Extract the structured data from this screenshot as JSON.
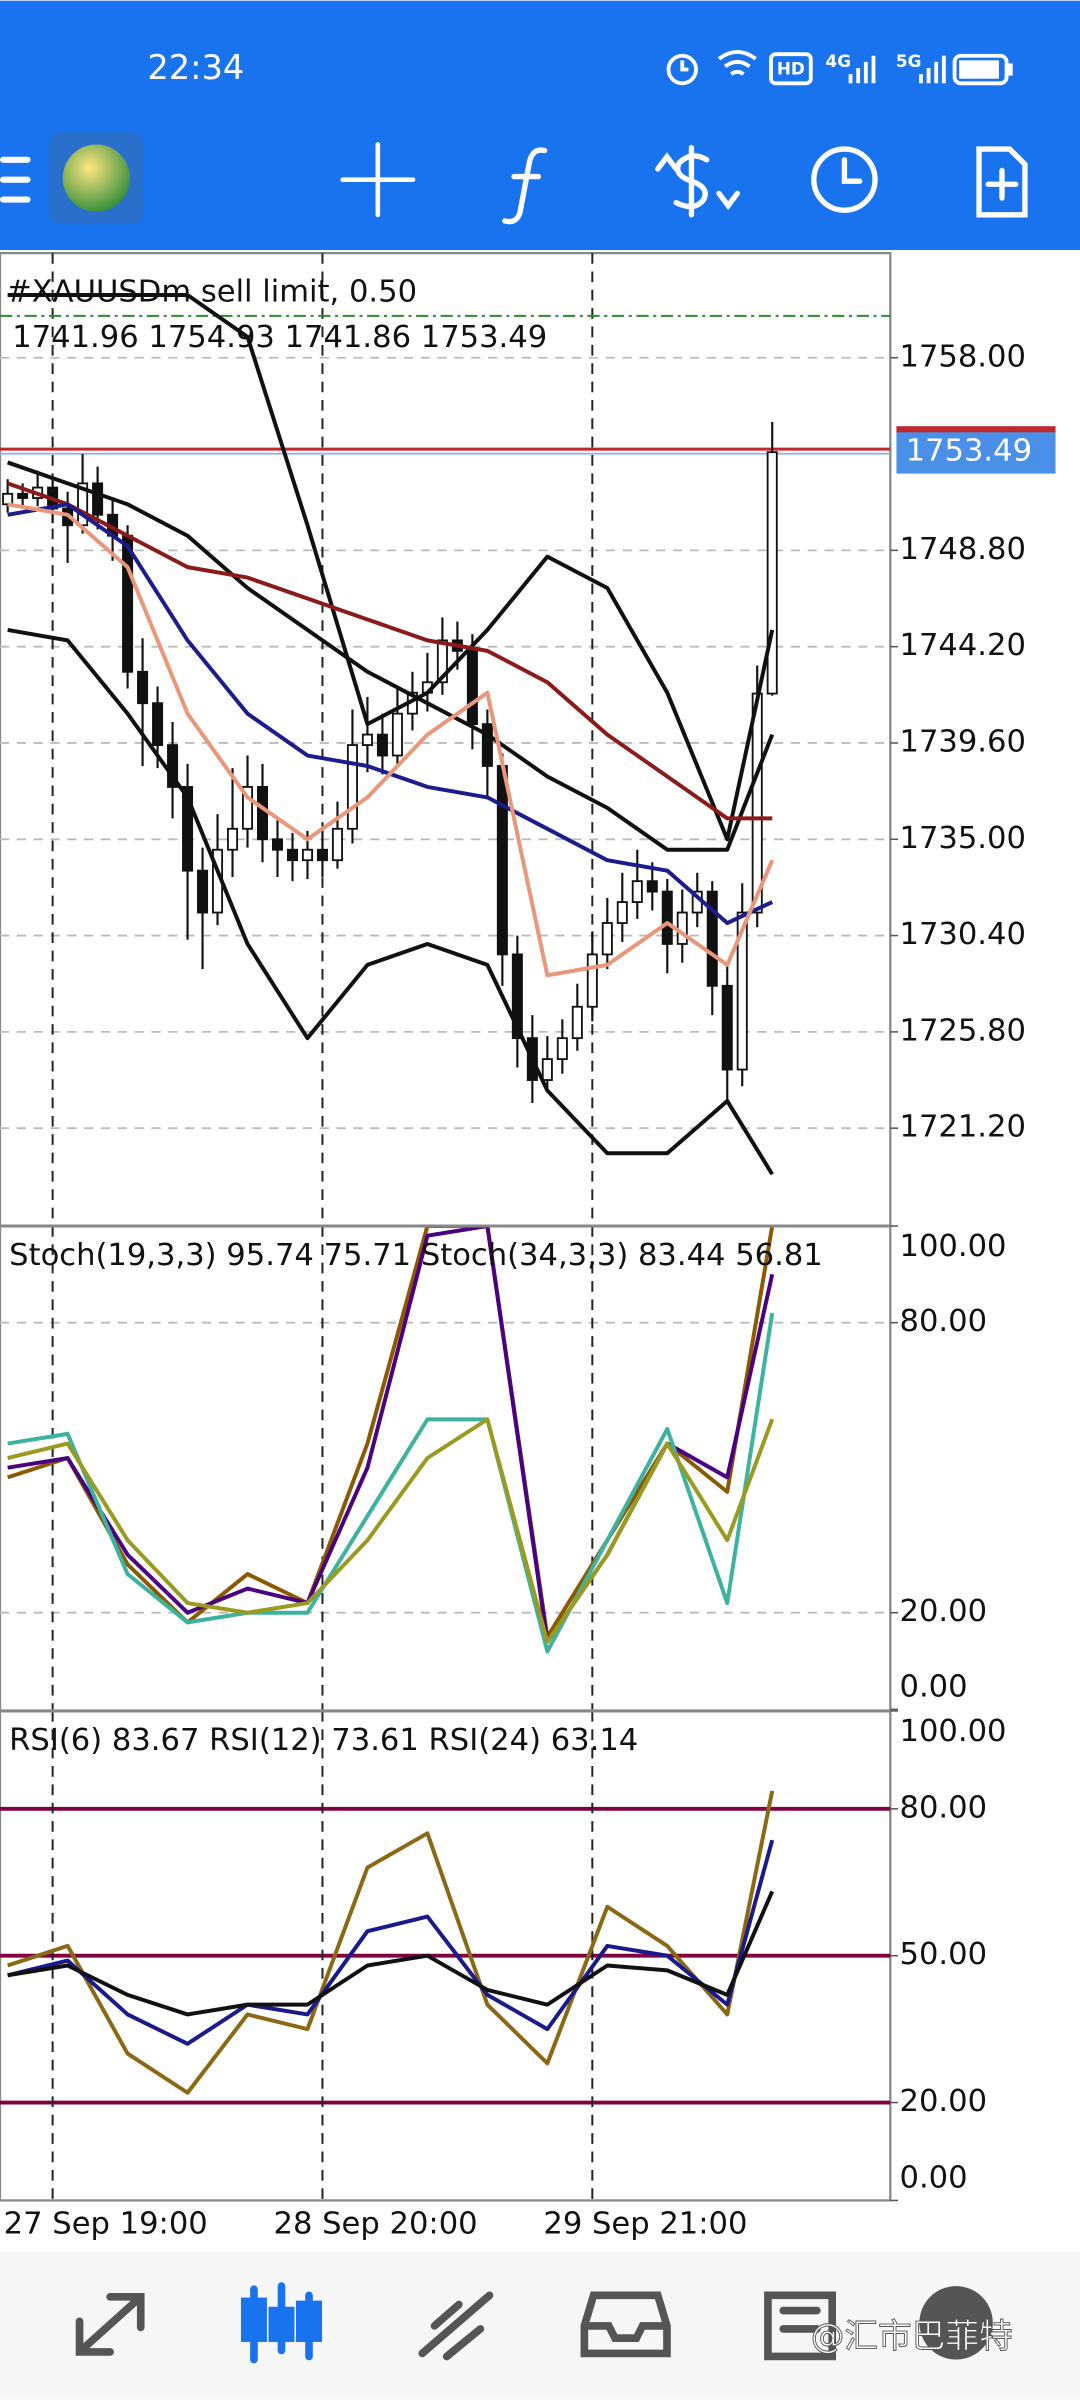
{
  "status_bar": {
    "time": "22:34",
    "icons": [
      "HD",
      "4G",
      "5G"
    ]
  },
  "main_chart": {
    "type": "candlestick",
    "title": "#XAUUSDm sell limit, 0.50",
    "ohlc_text": "1741.96 1754.93 1741.86 1753.49",
    "candles": [
      [
        1751.0,
        1752.2,
        1750.6,
        1751.5
      ],
      [
        1751.5,
        1752.0,
        1750.8,
        1751.3
      ],
      [
        1751.3,
        1752.6,
        1750.9,
        1751.8
      ],
      [
        1751.8,
        1752.3,
        1750.1,
        1750.8
      ],
      [
        1750.8,
        1751.6,
        1748.2,
        1750.0
      ],
      [
        1750.0,
        1753.4,
        1749.6,
        1752.0
      ],
      [
        1752.0,
        1752.8,
        1749.8,
        1750.5
      ],
      [
        1750.5,
        1751.2,
        1748.3,
        1749.5
      ],
      [
        1749.5,
        1750.0,
        1742.2,
        1743.0
      ],
      [
        1743.0,
        1744.6,
        1738.5,
        1741.5
      ],
      [
        1741.5,
        1742.3,
        1738.4,
        1739.5
      ],
      [
        1739.5,
        1740.6,
        1736.0,
        1737.5
      ],
      [
        1737.5,
        1738.6,
        1730.2,
        1733.5
      ],
      [
        1733.5,
        1734.6,
        1728.8,
        1731.5
      ],
      [
        1731.5,
        1736.2,
        1730.9,
        1734.5
      ],
      [
        1734.5,
        1738.4,
        1733.2,
        1735.5
      ],
      [
        1735.5,
        1739.0,
        1734.6,
        1737.5
      ],
      [
        1737.5,
        1738.6,
        1733.9,
        1735.0
      ],
      [
        1735.0,
        1736.0,
        1733.2,
        1734.5
      ],
      [
        1734.5,
        1735.3,
        1733.0,
        1734.0
      ],
      [
        1734.0,
        1735.4,
        1733.1,
        1734.5
      ],
      [
        1734.5,
        1735.6,
        1733.2,
        1734.0
      ],
      [
        1734.0,
        1736.8,
        1733.6,
        1735.5
      ],
      [
        1735.5,
        1741.2,
        1734.8,
        1739.5
      ],
      [
        1739.5,
        1741.8,
        1738.2,
        1740.0
      ],
      [
        1740.0,
        1741.0,
        1738.1,
        1739.0
      ],
      [
        1739.0,
        1742.3,
        1738.5,
        1741.0
      ],
      [
        1741.0,
        1743.0,
        1740.2,
        1742.0
      ],
      [
        1742.0,
        1743.9,
        1741.1,
        1742.5
      ],
      [
        1742.5,
        1745.6,
        1741.9,
        1744.5
      ],
      [
        1744.5,
        1745.4,
        1743.1,
        1744.0
      ],
      [
        1744.0,
        1744.8,
        1739.3,
        1740.5
      ],
      [
        1740.5,
        1741.2,
        1737.0,
        1738.5
      ],
      [
        1738.5,
        1739.1,
        1728.0,
        1729.5
      ],
      [
        1729.5,
        1730.4,
        1724.1,
        1725.5
      ],
      [
        1725.5,
        1726.6,
        1722.4,
        1723.5
      ],
      [
        1723.5,
        1725.6,
        1722.9,
        1724.5
      ],
      [
        1724.5,
        1726.4,
        1723.8,
        1725.5
      ],
      [
        1725.5,
        1728.1,
        1724.9,
        1727.0
      ],
      [
        1727.0,
        1730.6,
        1726.3,
        1729.5
      ],
      [
        1729.5,
        1732.2,
        1728.8,
        1731.0
      ],
      [
        1731.0,
        1733.4,
        1730.1,
        1732.0
      ],
      [
        1732.0,
        1734.5,
        1731.2,
        1733.0
      ],
      [
        1733.0,
        1733.9,
        1731.6,
        1732.5
      ],
      [
        1732.5,
        1733.1,
        1728.6,
        1730.0
      ],
      [
        1730.0,
        1732.6,
        1729.1,
        1731.5
      ],
      [
        1731.5,
        1733.4,
        1730.8,
        1732.5
      ],
      [
        1732.5,
        1733.0,
        1726.6,
        1728.0
      ],
      [
        1728.0,
        1729.1,
        1722.5,
        1724.0
      ],
      [
        1724.0,
        1732.9,
        1723.2,
        1731.5
      ],
      [
        1731.5,
        1743.3,
        1730.8,
        1741.96
      ],
      [
        1741.96,
        1754.93,
        1741.86,
        1753.49
      ]
    ],
    "ylim": [
      1716.6,
      1763.0
    ],
    "yticks": [
      {
        "value": 1758,
        "label": "1758.00"
      },
      {
        "value": 1748.8,
        "label": "1748.80"
      },
      {
        "value": 1744.2,
        "label": "1744.20"
      },
      {
        "value": 1739.6,
        "label": "1739.60"
      },
      {
        "value": 1735,
        "label": "1735.00"
      },
      {
        "value": 1730.4,
        "label": "1730.40"
      },
      {
        "value": 1725.8,
        "label": "1725.80"
      },
      {
        "value": 1721.2,
        "label": "1721.20"
      }
    ],
    "current_price": 1753.49,
    "order_line": 1760.0,
    "grid": "dashed",
    "x": [
      0,
      4,
      8,
      12,
      16,
      20,
      24,
      28,
      32,
      36,
      40,
      44,
      48,
      51
    ],
    "series": [
      {
        "color": "#111111",
        "values": [
          1761,
          1761,
          1761,
          1761,
          1759,
          1750,
          1740.5,
          1742,
          1745,
          1748.5,
          1747,
          1742,
          1735,
          1745
        ]
      },
      {
        "color": "#111111",
        "values": [
          1745,
          1744.5,
          1741,
          1737,
          1730,
          1725.5,
          1729,
          1730,
          1729,
          1723,
          1720,
          1720,
          1722.5,
          1719
        ]
      },
      {
        "color": "#111111",
        "values": [
          1753,
          1752,
          1751,
          1749.5,
          1747,
          1745,
          1743,
          1741.5,
          1740,
          1738,
          1736.5,
          1734.5,
          1734.5,
          1740
        ]
      },
      {
        "color": "#8b1a1a",
        "values": [
          1752,
          1751,
          1749.5,
          1748,
          1747.5,
          1746.5,
          1745.5,
          1744.5,
          1744,
          1742.5,
          1740,
          1738,
          1736,
          1736
        ]
      },
      {
        "color": "#1c1c8c",
        "values": [
          1750.5,
          1751,
          1749,
          1744.5,
          1741,
          1739,
          1738.5,
          1737.5,
          1737,
          1735.5,
          1734,
          1733.5,
          1731,
          1732
        ]
      },
      {
        "color": "#e9967a",
        "values": [
          1751,
          1750.5,
          1748,
          1741,
          1737,
          1735,
          1737,
          1740,
          1742,
          1728.5,
          1729,
          1731,
          1729,
          1734
        ]
      }
    ],
    "time_marks": [
      {
        "index": 3,
        "label": "27 Sep 19:00"
      },
      {
        "index": 21,
        "label": "28 Sep 20:00"
      },
      {
        "index": 39,
        "label": "29 Sep 21:00"
      }
    ]
  },
  "stoch_chart": {
    "type": "line",
    "title": "Stoch(19,3,3) 95.74 75.71 Stoch(34,3,3) 83.44 56.81",
    "ylim": [
      0,
      100
    ],
    "yticks": [
      {
        "value": 100,
        "label": "100.00"
      },
      {
        "value": 80,
        "label": "80.00"
      },
      {
        "value": 20,
        "label": "20.00"
      },
      {
        "value": 0,
        "label": "0.00"
      }
    ],
    "grid": "dashed",
    "x": [
      0,
      4,
      8,
      12,
      16,
      20,
      24,
      28,
      32,
      36,
      40,
      44,
      48,
      51
    ],
    "series": [
      {
        "color": "#8b5a00",
        "values": [
          48,
          52,
          30,
          18,
          28,
          22,
          55,
          100,
          100,
          15,
          35,
          55,
          45,
          100
        ]
      },
      {
        "color": "#4b0082",
        "values": [
          50,
          52,
          32,
          20,
          25,
          22,
          50,
          98,
          100,
          14,
          32,
          55,
          48,
          90
        ]
      },
      {
        "color": "#3cb3a0",
        "values": [
          55,
          57,
          28,
          18,
          20,
          20,
          40,
          60,
          60,
          12,
          35,
          58,
          22,
          82
        ]
      },
      {
        "color": "#9a9a20",
        "values": [
          52,
          55,
          35,
          22,
          20,
          22,
          35,
          52,
          60,
          14,
          32,
          55,
          35,
          60
        ]
      }
    ]
  },
  "rsi_chart": {
    "type": "line",
    "title": "RSI(6) 83.67 RSI(12) 73.61 RSI(24) 63.14",
    "ylim": [
      0,
      100
    ],
    "yticks": [
      {
        "value": 100,
        "label": "100.00"
      },
      {
        "value": 80,
        "label": "80.00"
      },
      {
        "value": 50,
        "label": "50.00"
      },
      {
        "value": 20,
        "label": "20.00"
      },
      {
        "value": 0,
        "label": "0.00"
      }
    ],
    "grid": "solid",
    "x": [
      0,
      4,
      8,
      12,
      16,
      20,
      24,
      28,
      32,
      36,
      40,
      44,
      48,
      51
    ],
    "series": [
      {
        "color": "#8b6914",
        "values": [
          48,
          52,
          30,
          22,
          38,
          35,
          68,
          75,
          40,
          28,
          60,
          52,
          38,
          83.67
        ]
      },
      {
        "color": "#1a1a8c",
        "values": [
          46,
          49,
          38,
          32,
          40,
          38,
          55,
          58,
          42,
          35,
          52,
          50,
          40,
          73.61
        ]
      },
      {
        "color": "#111111",
        "values": [
          46,
          48,
          42,
          38,
          40,
          40,
          48,
          50,
          43,
          40,
          48,
          47,
          42,
          63.14
        ]
      }
    ]
  },
  "bottom_nav": {
    "watermark": "@汇市巴菲特"
  }
}
